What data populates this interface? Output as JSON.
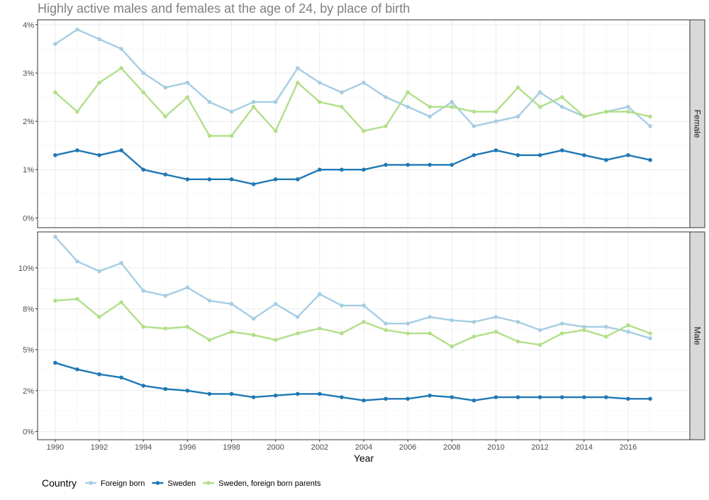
{
  "chart_data": {
    "type": "line",
    "title": "Highly active males and females at the age of 24, by place of birth",
    "xlabel": "Year",
    "legend_title": "Country",
    "legend_position": "bottom-left",
    "grid": true,
    "colors": {
      "Foreign born": "#a6cee3",
      "Sweden": "#1f78b4",
      "Sweden, foreign born parents": "#b2df8a"
    },
    "x": [
      1990,
      1991,
      1992,
      1993,
      1994,
      1995,
      1996,
      1997,
      1998,
      1999,
      2000,
      2001,
      2002,
      2003,
      2004,
      2005,
      2006,
      2007,
      2008,
      2009,
      2010,
      2011,
      2012,
      2013,
      2014,
      2015,
      2016,
      2017
    ],
    "x_tick_labels": [
      "1990",
      "1992",
      "1994",
      "1996",
      "1998",
      "2000",
      "2002",
      "2004",
      "2006",
      "2008",
      "2010",
      "2012",
      "2014",
      "2016"
    ],
    "xlim": [
      1989.2,
      2018.8
    ],
    "panels": [
      {
        "strip": "Female",
        "ylim": [
          -0.2,
          4.1
        ],
        "y_ticks": [
          0,
          1,
          2,
          3,
          4
        ],
        "y_tick_labels": [
          "0%",
          "1%",
          "2%",
          "3%",
          "4%"
        ],
        "series": [
          {
            "name": "Foreign born",
            "values": [
              3.6,
              3.9,
              3.7,
              3.5,
              3.0,
              2.7,
              2.8,
              2.4,
              2.2,
              2.4,
              2.4,
              3.1,
              2.8,
              2.6,
              2.8,
              2.5,
              2.3,
              2.1,
              2.4,
              1.9,
              2.0,
              2.1,
              2.6,
              2.3,
              2.1,
              2.2,
              2.3,
              1.9
            ]
          },
          {
            "name": "Sweden",
            "values": [
              1.3,
              1.4,
              1.3,
              1.4,
              1.0,
              0.9,
              0.8,
              0.8,
              0.8,
              0.7,
              0.8,
              0.8,
              1.0,
              1.0,
              1.0,
              1.1,
              1.1,
              1.1,
              1.1,
              1.3,
              1.4,
              1.3,
              1.3,
              1.4,
              1.3,
              1.2,
              1.3,
              1.2
            ]
          },
          {
            "name": "Sweden, foreign born parents",
            "values": [
              2.6,
              2.2,
              2.8,
              3.1,
              2.6,
              2.1,
              2.5,
              1.7,
              1.7,
              2.3,
              1.8,
              2.8,
              2.4,
              2.3,
              1.8,
              1.9,
              2.6,
              2.3,
              2.3,
              2.2,
              2.2,
              2.7,
              2.3,
              2.5,
              2.1,
              2.2,
              2.2,
              2.1
            ]
          }
        ]
      },
      {
        "strip": "Male",
        "ylim": [
          -0.5,
          12.2
        ],
        "y_ticks": [
          0,
          2.5,
          5,
          7.5,
          10
        ],
        "y_tick_labels": [
          "0%",
          "2%",
          "5%",
          "8%",
          "10%"
        ],
        "series": [
          {
            "name": "Foreign born",
            "values": [
              11.9,
              10.4,
              9.8,
              10.3,
              8.6,
              8.3,
              8.8,
              8.0,
              7.8,
              6.9,
              7.8,
              7.0,
              8.4,
              7.7,
              7.7,
              6.6,
              6.6,
              7.0,
              6.8,
              6.7,
              7.0,
              6.7,
              6.2,
              6.6,
              6.4,
              6.4,
              6.1,
              5.7
            ]
          },
          {
            "name": "Sweden",
            "values": [
              4.2,
              3.8,
              3.5,
              3.3,
              2.8,
              2.6,
              2.5,
              2.3,
              2.3,
              2.1,
              2.2,
              2.3,
              2.3,
              2.1,
              1.9,
              2.0,
              2.0,
              2.2,
              2.1,
              1.9,
              2.1,
              2.1,
              2.1,
              2.1,
              2.1,
              2.1,
              2.0,
              2.0
            ]
          },
          {
            "name": "Sweden, foreign born parents",
            "values": [
              8.0,
              8.1,
              7.0,
              7.9,
              6.4,
              6.3,
              6.4,
              5.6,
              6.1,
              5.9,
              5.6,
              6.0,
              6.3,
              6.0,
              6.7,
              6.2,
              6.0,
              6.0,
              5.2,
              5.8,
              6.1,
              5.5,
              5.3,
              6.0,
              6.2,
              5.8,
              6.5,
              6.0
            ]
          }
        ]
      }
    ]
  }
}
